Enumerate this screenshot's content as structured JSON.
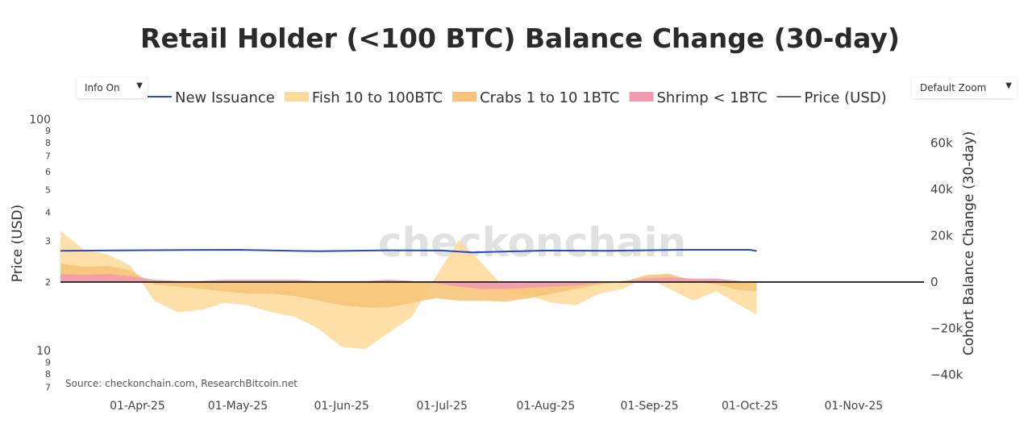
{
  "title": "Retail Holder (<100 BTC) Balance Change (30-day)",
  "controls": {
    "info_label": "Info On",
    "zoom_label": "Default Zoom"
  },
  "watermark": "checkonchain",
  "source": "Source: checkonchain.com, ResearchBitcoin.net",
  "legend": [
    {
      "label": "New Issuance",
      "color": "#2548c9",
      "kind": "line"
    },
    {
      "label": "Fish 10 to 100BTC",
      "color": "#fddc9d",
      "kind": "area"
    },
    {
      "label": "Crabs 1 to 10 1BTC",
      "color": "#f6c47a",
      "kind": "area"
    },
    {
      "label": "Shrimp < 1BTC",
      "color": "#f29bb0",
      "kind": "area"
    },
    {
      "label": "Price (USD)",
      "color": "#666666",
      "kind": "line"
    }
  ],
  "axes": {
    "left_title": "Price (USD)",
    "right_title": "Cohort Balance Change (30-day)",
    "left_ticks": [
      {
        "v": 100,
        "t": "100",
        "major": true
      },
      {
        "v": 90,
        "t": "9"
      },
      {
        "v": 80,
        "t": "8"
      },
      {
        "v": 70,
        "t": "7"
      },
      {
        "v": 60,
        "t": "6"
      },
      {
        "v": 50,
        "t": "5"
      },
      {
        "v": 40,
        "t": "4"
      },
      {
        "v": 30,
        "t": "3"
      },
      {
        "v": 20,
        "t": "2"
      },
      {
        "v": 10,
        "t": "10",
        "major": true
      },
      {
        "v": 9,
        "t": "9"
      },
      {
        "v": 8,
        "t": "8"
      },
      {
        "v": 7,
        "t": "7"
      }
    ],
    "right_ticks": [
      {
        "v": 60000,
        "t": "60k"
      },
      {
        "v": 40000,
        "t": "40k"
      },
      {
        "v": 20000,
        "t": "20k"
      },
      {
        "v": 0,
        "t": "0"
      },
      {
        "v": -20000,
        "t": "−20k"
      },
      {
        "v": -40000,
        "t": "−40k"
      }
    ],
    "x_ticks": [
      {
        "d": "2025-04-01",
        "t": "01-Apr-25"
      },
      {
        "d": "2025-05-01",
        "t": "01-May-25"
      },
      {
        "d": "2025-06-01",
        "t": "01-Jun-25"
      },
      {
        "d": "2025-07-01",
        "t": "01-Jul-25"
      },
      {
        "d": "2025-08-01",
        "t": "01-Aug-25"
      },
      {
        "d": "2025-09-01",
        "t": "01-Sep-25"
      },
      {
        "d": "2025-10-01",
        "t": "01-Oct-25"
      },
      {
        "d": "2025-11-01",
        "t": "01-Nov-25"
      }
    ]
  },
  "chart_data": {
    "type": "area",
    "title": "Retail Holder (<100 BTC) Balance Change (30-day)",
    "x_range": [
      "2025-03-09",
      "2025-11-22"
    ],
    "y_left": {
      "label": "Price (USD)",
      "scale": "log",
      "range": [
        6.6,
        105
      ]
    },
    "y_right": {
      "label": "Cohort Balance Change (30-day)",
      "range": [
        -48000,
        72000
      ]
    },
    "legend_position": "top",
    "series": [
      {
        "name": "Shrimp < 1BTC",
        "axis": "right",
        "points": [
          [
            "2025-03-09",
            3500
          ],
          [
            "2025-03-16",
            3000
          ],
          [
            "2025-03-23",
            3500
          ],
          [
            "2025-03-30",
            2500
          ],
          [
            "2025-04-06",
            1000
          ],
          [
            "2025-04-13",
            500
          ],
          [
            "2025-04-20",
            500
          ],
          [
            "2025-04-27",
            1000
          ],
          [
            "2025-05-04",
            1000
          ],
          [
            "2025-05-11",
            1000
          ],
          [
            "2025-05-18",
            1000
          ],
          [
            "2025-05-25",
            500
          ],
          [
            "2025-06-01",
            500
          ],
          [
            "2025-06-08",
            500
          ],
          [
            "2025-06-15",
            1000
          ],
          [
            "2025-06-22",
            500
          ],
          [
            "2025-06-29",
            -500
          ],
          [
            "2025-07-06",
            -2000
          ],
          [
            "2025-07-13",
            -3000
          ],
          [
            "2025-07-20",
            -3000
          ],
          [
            "2025-07-27",
            -2500
          ],
          [
            "2025-08-03",
            -2000
          ],
          [
            "2025-08-10",
            -1500
          ],
          [
            "2025-08-17",
            -500
          ],
          [
            "2025-08-24",
            500
          ],
          [
            "2025-08-31",
            1500
          ],
          [
            "2025-09-07",
            2000
          ],
          [
            "2025-09-14",
            1500
          ],
          [
            "2025-09-21",
            1500
          ],
          [
            "2025-09-28",
            500
          ],
          [
            "2025-10-03",
            -500
          ]
        ]
      },
      {
        "name": "Crabs 1 to 10 1BTC",
        "axis": "right",
        "points": [
          [
            "2025-03-09",
            8000
          ],
          [
            "2025-03-16",
            6500
          ],
          [
            "2025-03-23",
            7000
          ],
          [
            "2025-03-30",
            5000
          ],
          [
            "2025-04-06",
            -1000
          ],
          [
            "2025-04-13",
            -2000
          ],
          [
            "2025-04-20",
            -3000
          ],
          [
            "2025-04-27",
            -4000
          ],
          [
            "2025-05-04",
            -5000
          ],
          [
            "2025-05-11",
            -5000
          ],
          [
            "2025-05-18",
            -6000
          ],
          [
            "2025-05-25",
            -8000
          ],
          [
            "2025-06-01",
            -10000
          ],
          [
            "2025-06-08",
            -11000
          ],
          [
            "2025-06-15",
            -11000
          ],
          [
            "2025-06-22",
            -9000
          ],
          [
            "2025-06-29",
            -7000
          ],
          [
            "2025-07-06",
            -8000
          ],
          [
            "2025-07-13",
            -8000
          ],
          [
            "2025-07-20",
            -8500
          ],
          [
            "2025-07-27",
            -7000
          ],
          [
            "2025-08-03",
            -5000
          ],
          [
            "2025-08-10",
            -3000
          ],
          [
            "2025-08-17",
            -1000
          ],
          [
            "2025-08-24",
            0
          ],
          [
            "2025-08-31",
            3000
          ],
          [
            "2025-09-07",
            3500
          ],
          [
            "2025-09-14",
            500
          ],
          [
            "2025-09-21",
            -1000
          ],
          [
            "2025-09-28",
            -3500
          ],
          [
            "2025-10-03",
            -4000
          ]
        ]
      },
      {
        "name": "Fish 10 to 100BTC",
        "axis": "right",
        "points": [
          [
            "2025-03-09",
            22000
          ],
          [
            "2025-03-16",
            14000
          ],
          [
            "2025-03-23",
            12000
          ],
          [
            "2025-03-30",
            7000
          ],
          [
            "2025-04-06",
            -8000
          ],
          [
            "2025-04-13",
            -13000
          ],
          [
            "2025-04-20",
            -12000
          ],
          [
            "2025-04-27",
            -9000
          ],
          [
            "2025-05-04",
            -10000
          ],
          [
            "2025-05-11",
            -13000
          ],
          [
            "2025-05-18",
            -15000
          ],
          [
            "2025-05-25",
            -20000
          ],
          [
            "2025-06-01",
            -28000
          ],
          [
            "2025-06-08",
            -29000
          ],
          [
            "2025-06-15",
            -22000
          ],
          [
            "2025-06-22",
            -15000
          ],
          [
            "2025-06-29",
            2000
          ],
          [
            "2025-07-06",
            18000
          ],
          [
            "2025-07-13",
            8000
          ],
          [
            "2025-07-20",
            -3000
          ],
          [
            "2025-07-27",
            -6000
          ],
          [
            "2025-08-03",
            -9000
          ],
          [
            "2025-08-10",
            -10000
          ],
          [
            "2025-08-17",
            -5000
          ],
          [
            "2025-08-24",
            -3000
          ],
          [
            "2025-08-31",
            2000
          ],
          [
            "2025-09-07",
            -3000
          ],
          [
            "2025-09-14",
            -8000
          ],
          [
            "2025-09-21",
            -4000
          ],
          [
            "2025-09-28",
            -10000
          ],
          [
            "2025-10-03",
            -14000
          ]
        ]
      },
      {
        "name": "New Issuance",
        "axis": "right",
        "points": [
          [
            "2025-03-09",
            13500
          ],
          [
            "2025-04-15",
            13800
          ],
          [
            "2025-05-01",
            13900
          ],
          [
            "2025-05-25",
            13300
          ],
          [
            "2025-06-15",
            13700
          ],
          [
            "2025-07-01",
            13600
          ],
          [
            "2025-07-10",
            12800
          ],
          [
            "2025-08-01",
            13600
          ],
          [
            "2025-08-20",
            13500
          ],
          [
            "2025-09-10",
            13900
          ],
          [
            "2025-10-01",
            13900
          ],
          [
            "2025-10-03",
            13400
          ]
        ]
      },
      {
        "name": "Price (USD)",
        "axis": "right",
        "points": [
          [
            "2025-03-09",
            0
          ],
          [
            "2025-11-22",
            0
          ]
        ]
      }
    ]
  }
}
